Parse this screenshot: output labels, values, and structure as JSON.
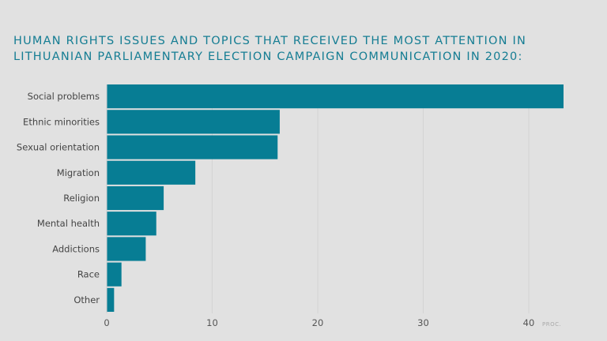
{
  "title": "HUMAN RIGHTS ISSUES AND TOPICS THAT RECEIVED THE MOST ATTENTION IN LITHUANIAN PARLIAMENTARY ELECTION CAMPAIGN COMMUNICATION IN 2020:",
  "colors": {
    "background": "#e1e1e1",
    "bar": "#077d94",
    "title": "#157d93",
    "grid": "#d3d3d3",
    "label": "#444444",
    "tick": "#555555",
    "unit": "#a9a9a9"
  },
  "chart_data": {
    "type": "bar",
    "orientation": "horizontal",
    "categories": [
      "Social problems",
      "Ethnic minorities",
      "Sexual orientation",
      "Migration",
      "Religion",
      "Mental health",
      "Addictions",
      "Race",
      "Other"
    ],
    "values": [
      43.3,
      16.4,
      16.2,
      8.4,
      5.4,
      4.7,
      3.7,
      1.4,
      0.7
    ],
    "xlim": [
      0,
      43.3
    ],
    "xticks": [
      0,
      10,
      20,
      30,
      40
    ],
    "x_unit_label": "PROC.",
    "grid": true
  }
}
